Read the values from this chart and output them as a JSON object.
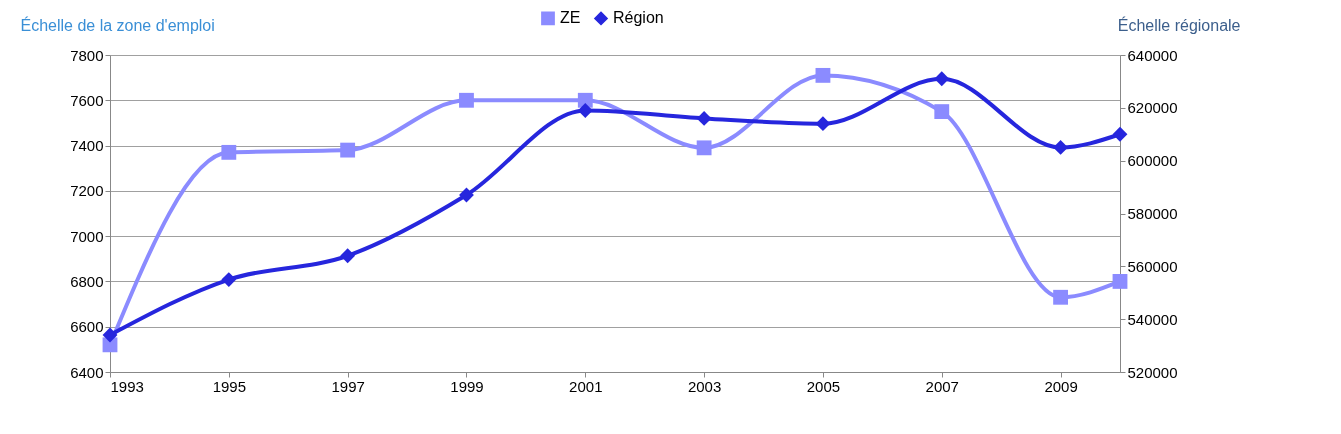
{
  "chart_data": {
    "type": "line",
    "ylabel": "Échelle de la zone d'emploi",
    "y2label": "Échelle régionale",
    "x": [
      1993,
      1995,
      1997,
      1999,
      2001,
      2003,
      2005,
      2007,
      2009,
      2010
    ],
    "xlim": [
      1993,
      2010
    ],
    "xticks": [
      1993,
      1995,
      1997,
      1999,
      2001,
      2003,
      2005,
      2007,
      2009
    ],
    "ylim": [
      6400,
      7800
    ],
    "yticks": [
      6400,
      6600,
      6800,
      7000,
      7200,
      7400,
      7600,
      7800
    ],
    "y2lim": [
      520000,
      640000
    ],
    "y2ticks": [
      520000,
      540000,
      560000,
      580000,
      600000,
      620000,
      640000
    ],
    "grid": "y",
    "legend": "top",
    "series": [
      {
        "name": "ZE",
        "color": "#8b8bff",
        "marker": "square",
        "values": [
          6520,
          7370,
          7380,
          7600,
          7600,
          7390,
          7710,
          7550,
          6730,
          6800
        ]
      },
      {
        "name": "Région",
        "color": "#2626dd",
        "marker": "diamond",
        "axis": "y2",
        "values": [
          534000,
          555000,
          564000,
          587000,
          619000,
          616000,
          614000,
          631000,
          605000,
          610000
        ]
      }
    ]
  }
}
